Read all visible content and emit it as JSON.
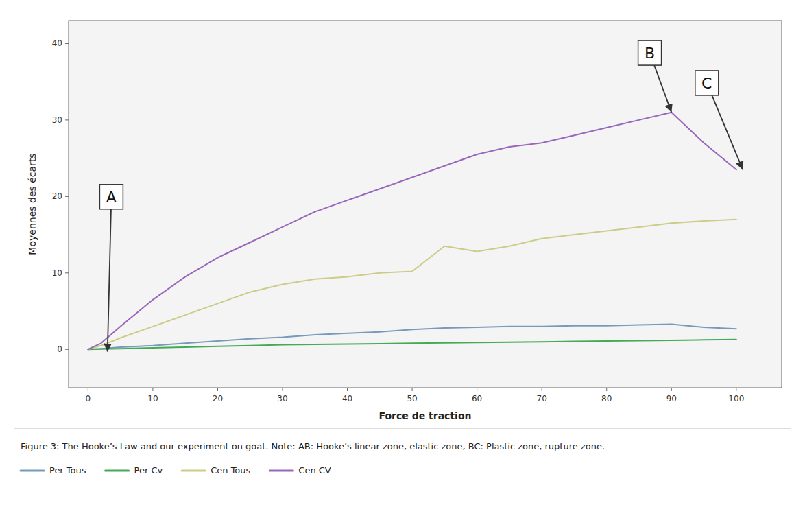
{
  "chart_data": {
    "type": "line",
    "xlabel": "Force de traction",
    "ylabel": "Moyennes des écarts",
    "xlim": [
      -3,
      107
    ],
    "ylim": [
      -5,
      43
    ],
    "xticks": [
      0,
      10,
      20,
      30,
      40,
      50,
      60,
      70,
      80,
      90,
      100
    ],
    "yticks": [
      0,
      10,
      20,
      30,
      40
    ],
    "grid": false,
    "legend": "bottom",
    "x": [
      0,
      2,
      5,
      10,
      15,
      20,
      25,
      30,
      35,
      40,
      45,
      50,
      55,
      60,
      65,
      70,
      75,
      80,
      85,
      90,
      95,
      100
    ],
    "series": [
      {
        "name": "Per Tous",
        "color": "#7799bb",
        "values": [
          0,
          0.1,
          0.3,
          0.5,
          0.8,
          1.1,
          1.4,
          1.6,
          1.9,
          2.1,
          2.3,
          2.6,
          2.8,
          2.9,
          3.0,
          3.0,
          3.1,
          3.1,
          3.2,
          3.3,
          2.9,
          2.7
        ]
      },
      {
        "name": "Per Cv",
        "color": "#44aa55",
        "values": [
          0,
          0.05,
          0.1,
          0.2,
          0.3,
          0.4,
          0.5,
          0.6,
          0.65,
          0.7,
          0.75,
          0.8,
          0.85,
          0.9,
          0.95,
          1.0,
          1.05,
          1.1,
          1.15,
          1.2,
          1.25,
          1.3
        ]
      },
      {
        "name": "Cen Tous",
        "color": "#cccc88",
        "values": [
          0,
          0.5,
          1.5,
          3.0,
          4.5,
          6.0,
          7.5,
          8.5,
          9.2,
          9.5,
          10.0,
          10.2,
          13.5,
          12.8,
          13.5,
          14.5,
          15.0,
          15.5,
          16.0,
          16.5,
          16.8,
          17.0
        ]
      },
      {
        "name": "Cen CV",
        "color": "#9966bb",
        "values": [
          0,
          0.8,
          3.0,
          6.5,
          9.5,
          12.0,
          14.0,
          16.0,
          18.0,
          19.5,
          21.0,
          22.5,
          24.0,
          25.5,
          26.5,
          27.0,
          28.0,
          29.0,
          30.0,
          31.0,
          27.0,
          23.5
        ]
      }
    ],
    "annotations": [
      {
        "text": "A",
        "x": 3,
        "y": -0.3
      },
      {
        "text": "B",
        "x": 90,
        "y": 31.0
      },
      {
        "text": "C",
        "x": 101,
        "y": 23.5
      }
    ],
    "caption": "Figure 3: The Hooke’s Law and our experiment on goat. Note: AB: Hooke’s linear zone, elastic zone, BC: Plastic zone, rupture zone."
  }
}
